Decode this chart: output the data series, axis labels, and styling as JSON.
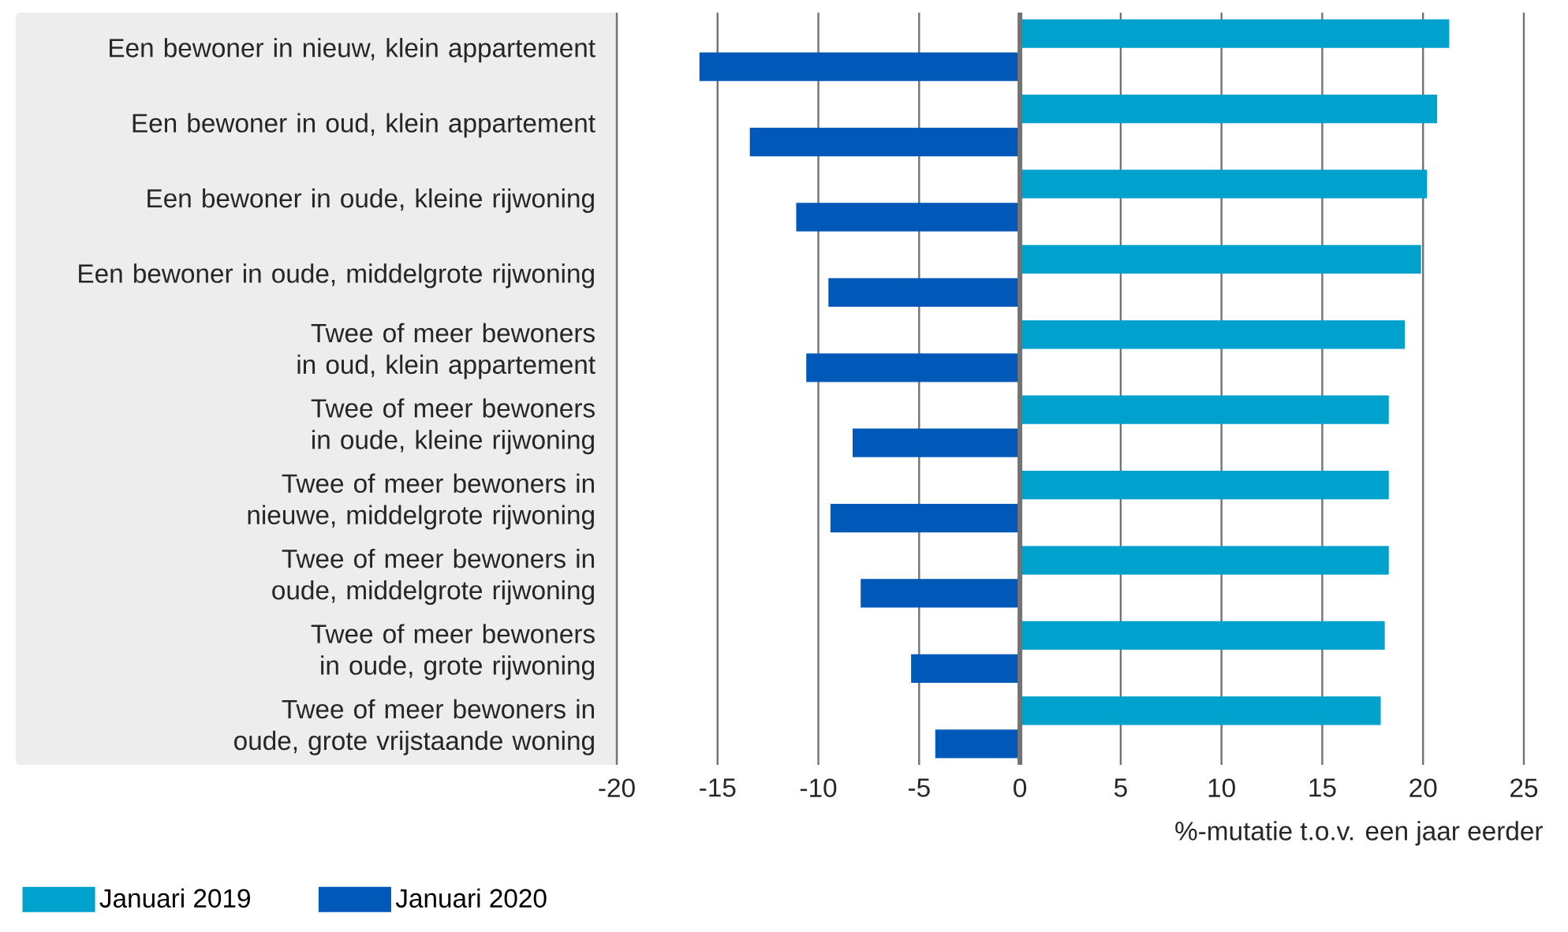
{
  "chart_data": {
    "type": "bar",
    "orientation": "horizontal",
    "categories": [
      "Een bewoner in nieuw, klein appartement",
      "Een bewoner in oud, klein appartement",
      "Een bewoner in oude, kleine rijwoning",
      "Een bewoner in oude, middelgrote rijwoning",
      "Twee of meer bewoners in oud, klein appartement",
      "Twee of meer bewoners in oude, kleine rijwoning",
      "Twee of meer bewoners in nieuwe, middelgrote rijwoning",
      "Twee of meer bewoners in oude, middelgrote rijwoning",
      "Twee of meer bewoners in oude, grote rijwoning",
      "Twee of meer bewoners in oude, grote vrijstaande woning"
    ],
    "series": [
      {
        "name": "Januari 2019",
        "color": "#00a1cd",
        "values": [
          21.3,
          20.7,
          20.2,
          19.9,
          19.1,
          18.3,
          18.3,
          18.3,
          18.1,
          17.9
        ]
      },
      {
        "name": "Januari 2020",
        "color": "#0058b8",
        "values": [
          -15.9,
          -13.4,
          -11.1,
          -9.5,
          -10.6,
          -8.3,
          -9.4,
          -7.9,
          -5.4,
          -4.2
        ]
      }
    ],
    "xlabel": "%-mutatie t.o.v. een jaar eerder",
    "xlim": [
      -20,
      25
    ],
    "xticks": [
      -20,
      -15,
      -10,
      -5,
      0,
      5,
      10,
      15,
      20,
      25
    ],
    "grid": "x",
    "legend": "bottom"
  }
}
